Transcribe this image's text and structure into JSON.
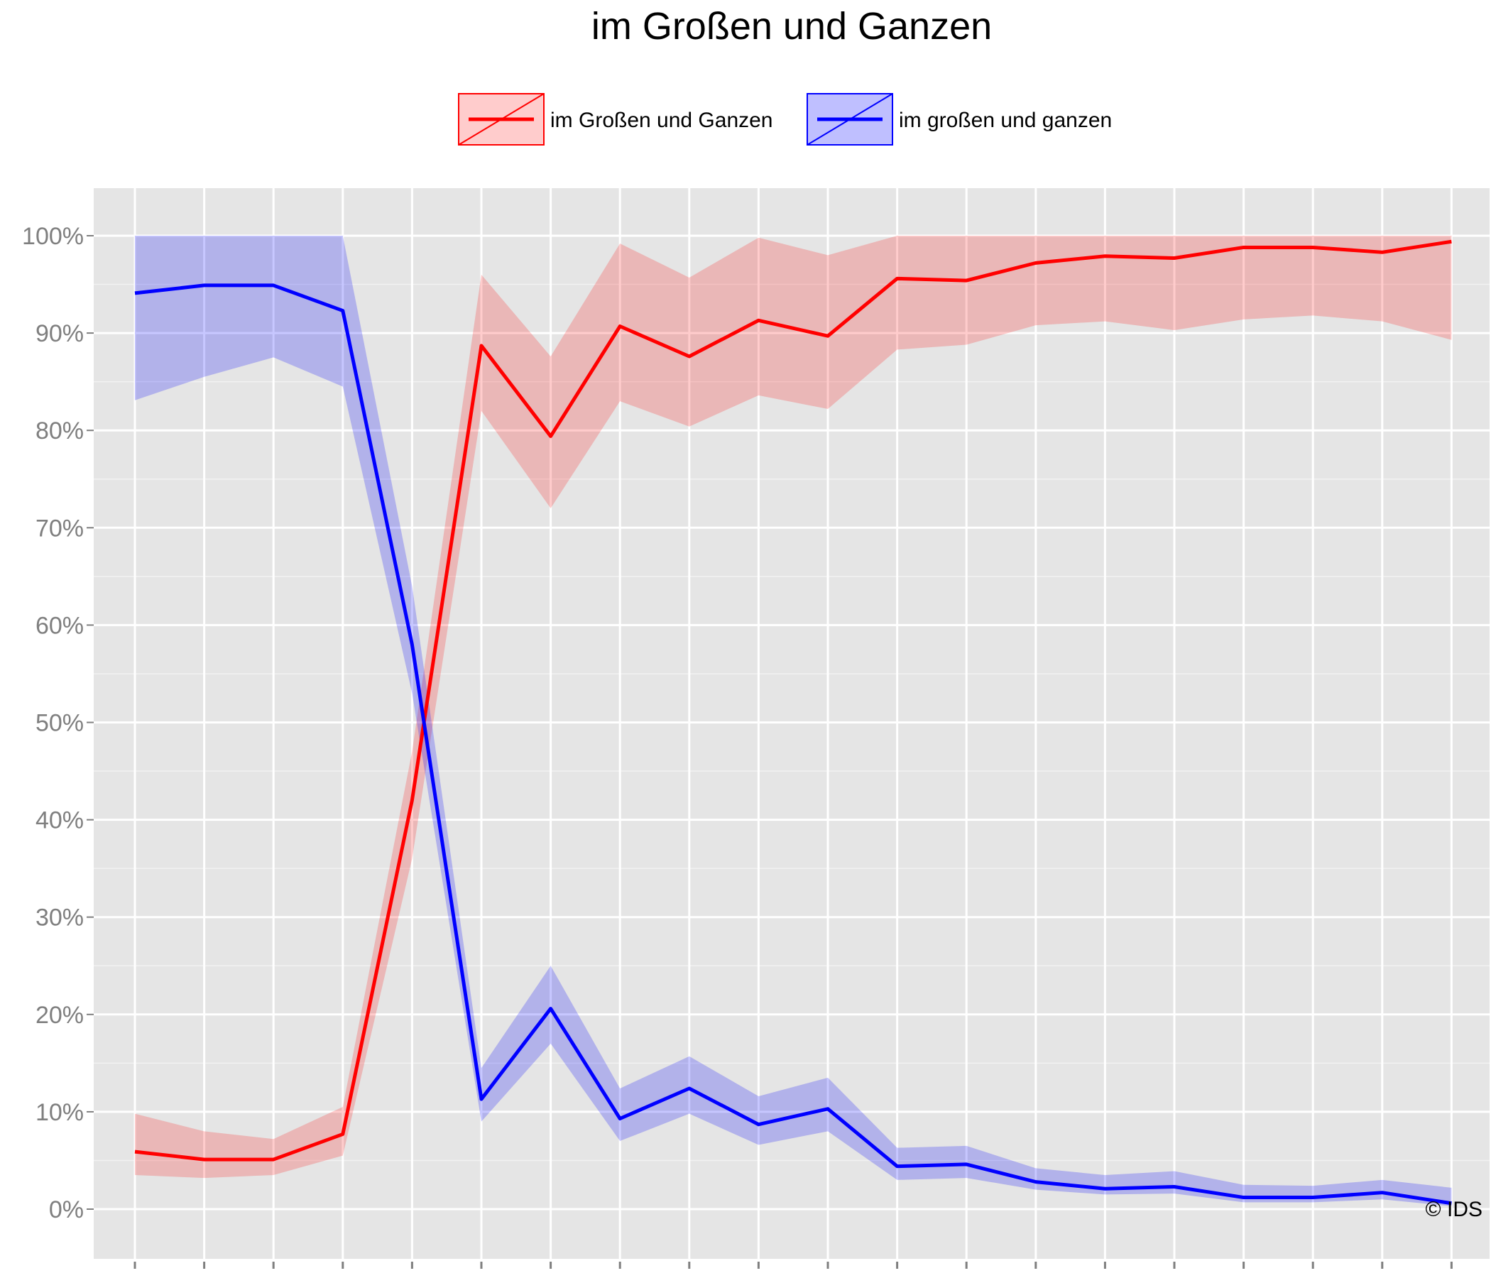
{
  "chart_data": {
    "type": "line",
    "title": "im Großen und Ganzen",
    "xlabel": "",
    "ylabel": "",
    "ylim": [
      -0.04,
      1.05
    ],
    "x": [
      1,
      2,
      3,
      4,
      5,
      6,
      7,
      8,
      9,
      10,
      11,
      12,
      13,
      14,
      15,
      16,
      17,
      18,
      19,
      20
    ],
    "yticks": [
      0,
      0.1,
      0.2,
      0.3,
      0.4,
      0.5,
      0.6,
      0.7,
      0.8,
      0.9,
      1.0
    ],
    "ytick_labels": [
      "0%",
      "10%",
      "20%",
      "30%",
      "40%",
      "50%",
      "60%",
      "70%",
      "80%",
      "90%",
      "100%"
    ],
    "grid": true,
    "legend_position": "top",
    "series": [
      {
        "name": "im Großen und Ganzen",
        "color": "#ff0000",
        "band_color": "#ff0000",
        "values": [
          0.059,
          0.051,
          0.051,
          0.077,
          0.42,
          0.887,
          0.794,
          0.907,
          0.876,
          0.913,
          0.897,
          0.956,
          0.954,
          0.972,
          0.979,
          0.977,
          0.988,
          0.988,
          0.983,
          0.994
        ],
        "lower": [
          0.035,
          0.032,
          0.035,
          0.055,
          0.36,
          0.82,
          0.72,
          0.83,
          0.804,
          0.836,
          0.822,
          0.883,
          0.888,
          0.908,
          0.912,
          0.903,
          0.914,
          0.918,
          0.912,
          0.893
        ],
        "upper": [
          0.098,
          0.08,
          0.072,
          0.105,
          0.47,
          0.96,
          0.876,
          0.992,
          0.957,
          0.998,
          0.98,
          1.0,
          1.0,
          1.0,
          1.0,
          1.0,
          1.0,
          1.0,
          1.0,
          1.0
        ]
      },
      {
        "name": "im großen und ganzen",
        "color": "#0000ff",
        "band_color": "#0000ff",
        "values": [
          0.941,
          0.949,
          0.949,
          0.923,
          0.58,
          0.113,
          0.206,
          0.093,
          0.124,
          0.087,
          0.103,
          0.044,
          0.046,
          0.028,
          0.021,
          0.023,
          0.012,
          0.012,
          0.017,
          0.006
        ],
        "lower": [
          0.831,
          0.855,
          0.875,
          0.845,
          0.53,
          0.09,
          0.17,
          0.07,
          0.098,
          0.066,
          0.08,
          0.03,
          0.032,
          0.02,
          0.015,
          0.016,
          0.007,
          0.007,
          0.01,
          0.003
        ],
        "upper": [
          1.0,
          1.0,
          1.0,
          1.0,
          0.64,
          0.145,
          0.25,
          0.124,
          0.157,
          0.116,
          0.135,
          0.063,
          0.065,
          0.042,
          0.035,
          0.039,
          0.025,
          0.024,
          0.03,
          0.022
        ]
      }
    ],
    "credit": "© IDS"
  }
}
